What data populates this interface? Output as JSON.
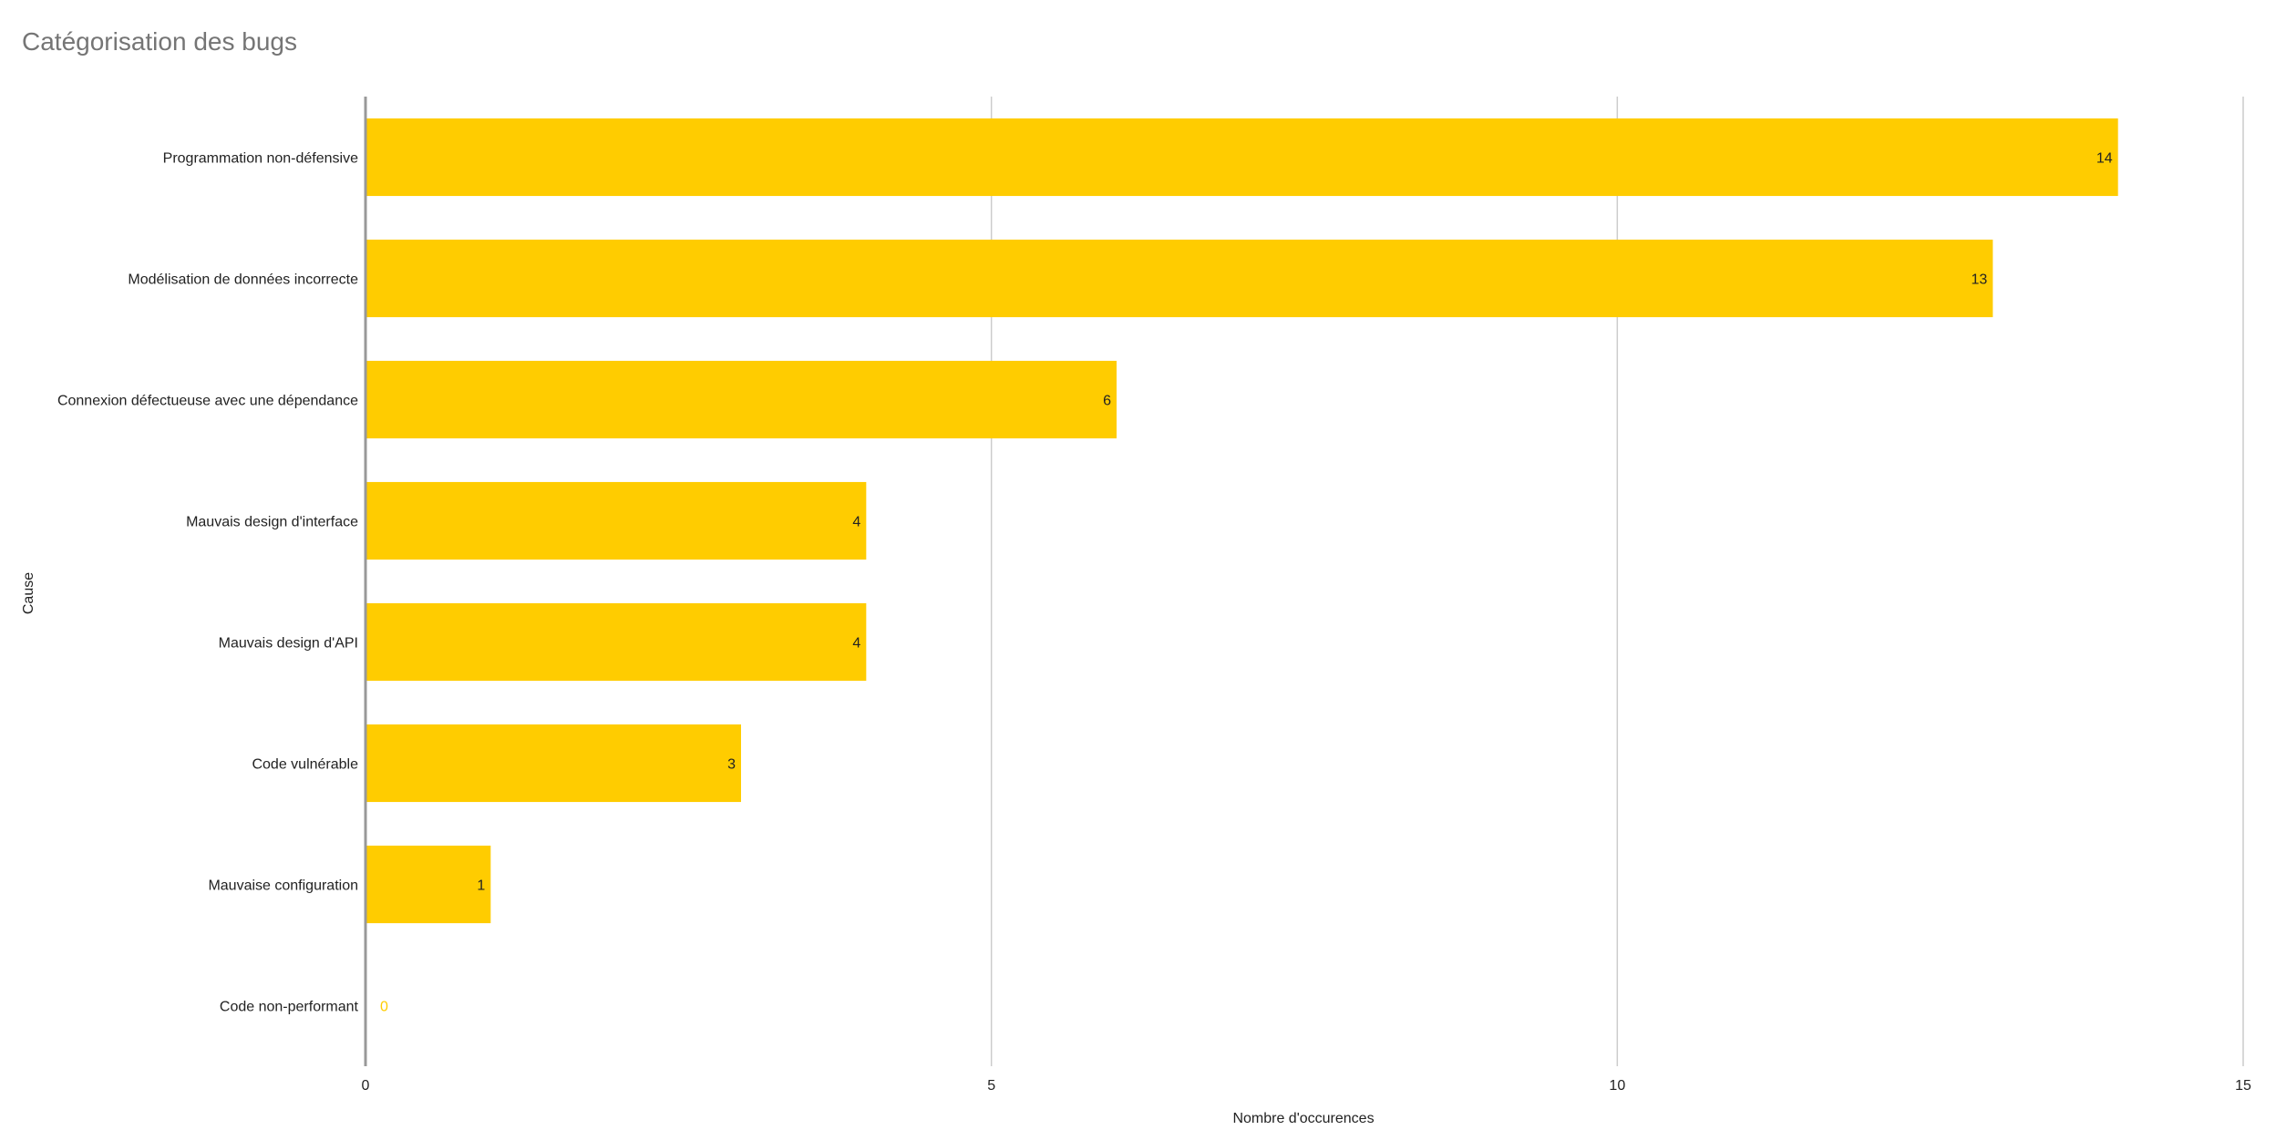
{
  "chart_data": {
    "type": "bar",
    "orientation": "horizontal",
    "title": "Catégorisation des bugs",
    "xlabel": "Nombre d'occurences",
    "ylabel": "Cause",
    "categories": [
      "Programmation non-défensive",
      "Modélisation de données incorrecte",
      "Connexion défectueuse avec une dépendance",
      "Mauvais design d'interface",
      "Mauvais design d'API",
      "Code vulnérable",
      "Mauvaise configuration",
      "Code non-performant"
    ],
    "values": [
      14,
      13,
      6,
      4,
      4,
      3,
      1,
      0
    ],
    "xlim": [
      0,
      15
    ],
    "xticks": [
      0,
      5,
      10,
      15
    ],
    "grid": true,
    "data_labels": true,
    "bar_color": "#ffcc00",
    "legend": "none"
  }
}
